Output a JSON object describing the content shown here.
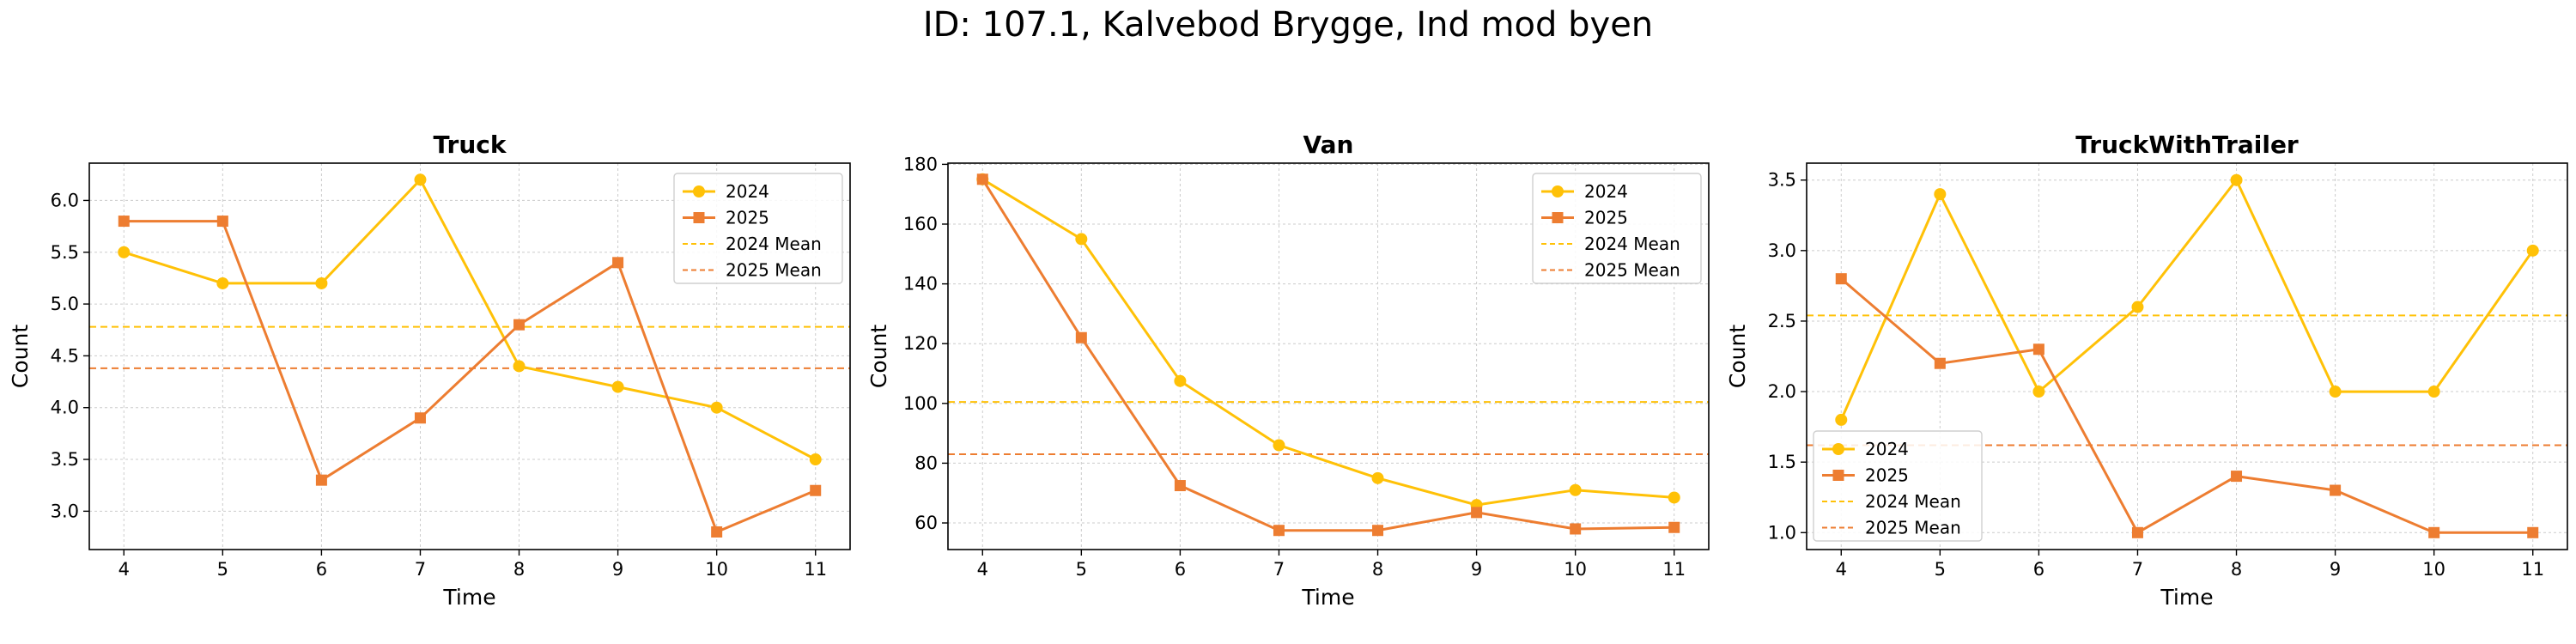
{
  "suptitle": "ID: 107.1, Kalvebod Brygge, Ind mod byen",
  "colors": {
    "2024": "#FFC107",
    "2025": "#ED7D31"
  },
  "chart_data": [
    {
      "type": "line",
      "title": "Truck",
      "xlabel": "Time",
      "ylabel": "Count",
      "x": [
        4,
        5,
        6,
        7,
        8,
        9,
        10,
        11
      ],
      "xlim": [
        3.65,
        11.35
      ],
      "ylim": [
        2.63,
        6.36
      ],
      "yticks": [
        3.0,
        3.5,
        4.0,
        4.5,
        5.0,
        5.5,
        6.0
      ],
      "ytick_labels": [
        "3.0",
        "3.5",
        "4.0",
        "4.5",
        "5.0",
        "5.5",
        "6.0"
      ],
      "grid": true,
      "legend_position": "upper right",
      "series": [
        {
          "name": "2024",
          "marker": "circle",
          "values": [
            5.5,
            5.2,
            5.2,
            6.2,
            4.4,
            4.2,
            4.0,
            3.5
          ]
        },
        {
          "name": "2025",
          "marker": "square",
          "values": [
            5.8,
            5.8,
            3.3,
            3.9,
            4.8,
            5.4,
            2.8,
            3.2
          ]
        }
      ],
      "mean_lines": [
        {
          "name": "2024 Mean",
          "value": 4.78
        },
        {
          "name": "2025 Mean",
          "value": 4.38
        }
      ]
    },
    {
      "type": "line",
      "title": "Van",
      "xlabel": "Time",
      "ylabel": "Count",
      "x": [
        4,
        5,
        6,
        7,
        8,
        9,
        10,
        11
      ],
      "xlim": [
        3.65,
        11.35
      ],
      "ylim": [
        51.1,
        180.4
      ],
      "yticks": [
        60,
        80,
        100,
        120,
        140,
        160,
        180
      ],
      "ytick_labels": [
        "60",
        "80",
        "100",
        "120",
        "140",
        "160",
        "180"
      ],
      "grid": true,
      "legend_position": "upper right",
      "series": [
        {
          "name": "2024",
          "marker": "circle",
          "values": [
            175,
            155,
            107.5,
            86,
            75,
            66,
            71,
            68.5
          ]
        },
        {
          "name": "2025",
          "marker": "square",
          "values": [
            175,
            122,
            72.5,
            57.5,
            57.5,
            63.5,
            58,
            58.5
          ]
        }
      ],
      "mean_lines": [
        {
          "name": "2024 Mean",
          "value": 100.5
        },
        {
          "name": "2025 Mean",
          "value": 83.0
        }
      ]
    },
    {
      "type": "line",
      "title": "TruckWithTrailer",
      "xlabel": "Time",
      "ylabel": "Count",
      "x": [
        4,
        5,
        6,
        7,
        8,
        9,
        10,
        11
      ],
      "xlim": [
        3.65,
        11.35
      ],
      "ylim": [
        0.88,
        3.62
      ],
      "yticks": [
        1.0,
        1.5,
        2.0,
        2.5,
        3.0,
        3.5
      ],
      "ytick_labels": [
        "1.0",
        "1.5",
        "2.0",
        "2.5",
        "3.0",
        "3.5"
      ],
      "grid": true,
      "legend_position": "lower left",
      "series": [
        {
          "name": "2024",
          "marker": "circle",
          "values": [
            1.8,
            3.4,
            2.0,
            2.6,
            3.5,
            2.0,
            2.0,
            3.0
          ]
        },
        {
          "name": "2025",
          "marker": "square",
          "values": [
            2.8,
            2.2,
            2.3,
            1.0,
            1.4,
            1.3,
            1.0,
            1.0
          ]
        }
      ],
      "mean_lines": [
        {
          "name": "2024 Mean",
          "value": 2.54
        },
        {
          "name": "2025 Mean",
          "value": 1.62
        }
      ]
    }
  ]
}
